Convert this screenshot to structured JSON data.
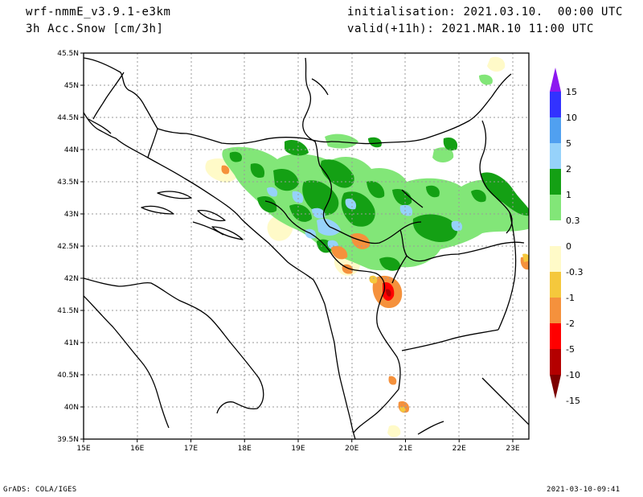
{
  "header": {
    "model": "wrf-nmmE_v3.9.1-e3km",
    "field": "3h Acc.Snow [cm/3h]",
    "init": "initialisation: 2021.03.10.  00:00 UTC",
    "valid": "valid(+11h): 2021.MAR.10 11:00 UTC"
  },
  "footer": {
    "left": "GrADS: COLA/IGES",
    "right": "2021-03-10-09:41"
  },
  "map": {
    "lon_labels": [
      "15E",
      "16E",
      "17E",
      "18E",
      "19E",
      "20E",
      "21E",
      "22E",
      "23E"
    ],
    "lat_labels": [
      "45.5N",
      "45N",
      "44.5N",
      "44N",
      "43.5N",
      "43N",
      "42.5N",
      "42N",
      "41.5N",
      "41N",
      "40.5N",
      "40N",
      "39.5N"
    ],
    "lon_range": [
      15,
      23.3
    ],
    "lat_range": [
      39.5,
      45.5
    ]
  },
  "legend": {
    "labels": [
      "15",
      "10",
      "5",
      "2",
      "1",
      "0.3",
      "0",
      "-0.3",
      "-1",
      "-2",
      "-5",
      "-10",
      "-15"
    ],
    "colors": [
      "#8c18f0",
      "#3232ff",
      "#50a0f0",
      "#96d2fa",
      "#14a014",
      "#82e678",
      "#ffffff",
      "#fffac8",
      "#f5c83c",
      "#f5913c",
      "#ff0000",
      "#b40000",
      "#7d0000"
    ]
  }
}
